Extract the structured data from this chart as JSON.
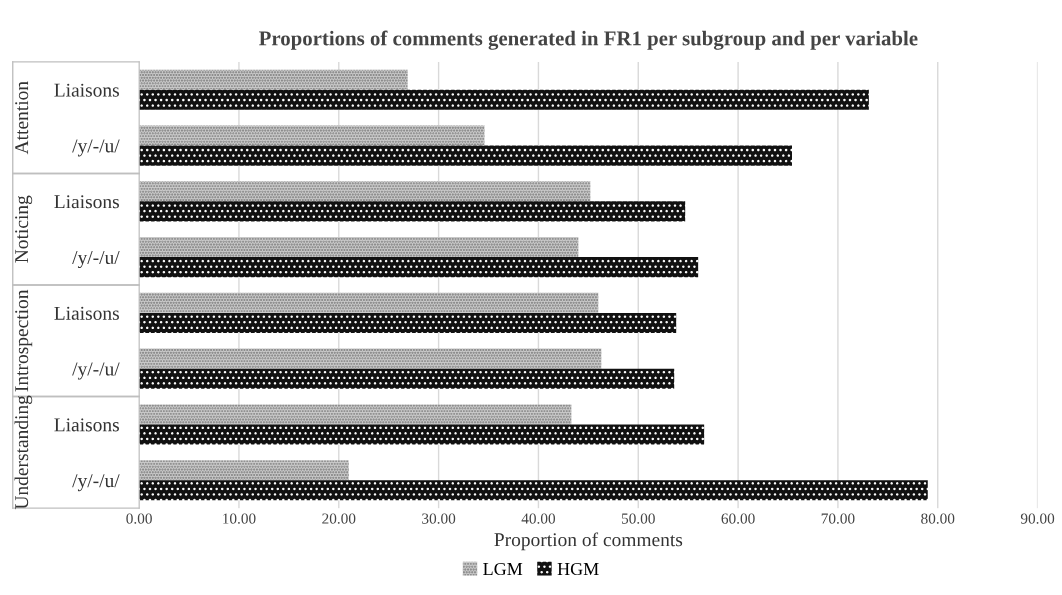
{
  "chart_data": {
    "type": "bar",
    "orientation": "horizontal",
    "title": "Proportions of comments generated in FR1 per subgroup and per variable",
    "xlabel": "Proportion of comments",
    "categories": [
      "Liaisons",
      "/y/-/u/",
      "Liaisons",
      "/y/-/u/",
      "Liaisons",
      "/y/-/u/",
      "Liaisons",
      "/y/-/u/"
    ],
    "annotations": [
      "Attention",
      "Noticing",
      "Introspection",
      "Understanding"
    ],
    "series": [
      {
        "name": "LGM",
        "color": "#c8c8c8",
        "values": [
          26.9,
          34.6,
          45.2,
          44.0,
          46.0,
          46.3,
          43.3,
          21.0
        ]
      },
      {
        "name": "HGM",
        "color": "#111111",
        "values": [
          73.1,
          65.4,
          54.7,
          56.0,
          53.8,
          53.6,
          56.6,
          79.0
        ]
      }
    ],
    "xlim": [
      0,
      90
    ],
    "xticks": [
      {
        "value": 0,
        "label": "0.00"
      },
      {
        "value": 10,
        "label": "10.00"
      },
      {
        "value": 20,
        "label": "20.00"
      },
      {
        "value": 30,
        "label": "30.00"
      },
      {
        "value": 40,
        "label": "40.00"
      },
      {
        "value": 50,
        "label": "50.00"
      },
      {
        "value": 60,
        "label": "60.00"
      },
      {
        "value": 70,
        "label": "70.00"
      },
      {
        "value": 80,
        "label": "80.00"
      },
      {
        "value": 90,
        "label": "90.00"
      }
    ],
    "grid": "x",
    "legend": "bottom"
  }
}
